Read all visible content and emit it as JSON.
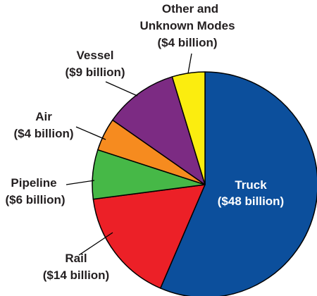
{
  "chart_data": {
    "type": "pie",
    "unit": "billion",
    "slices": [
      {
        "name": "Truck",
        "value": 48,
        "color": "#0c4f9c",
        "label_line1": "Truck",
        "label_line2": "($48 billion)"
      },
      {
        "name": "Rail",
        "value": 14,
        "color": "#ec2027",
        "label_line1": "Rail",
        "label_line2": "($14 billion)"
      },
      {
        "name": "Pipeline",
        "value": 6,
        "color": "#46b847",
        "label_line1": "Pipeline",
        "label_line2": "($6 billion)"
      },
      {
        "name": "Air",
        "value": 4,
        "color": "#f68b1f",
        "label_line1": "Air",
        "label_line2": "($4 billion)"
      },
      {
        "name": "Vessel",
        "value": 9,
        "color": "#7c2b83",
        "label_line1": "Vessel",
        "label_line2": "($9 billion)"
      },
      {
        "name": "Other and Unknown Modes",
        "value": 4,
        "color": "#fbed0f",
        "label_line1": "Other and",
        "label_line2": "Unknown Modes",
        "label_line3": "($4 billion)"
      }
    ]
  }
}
